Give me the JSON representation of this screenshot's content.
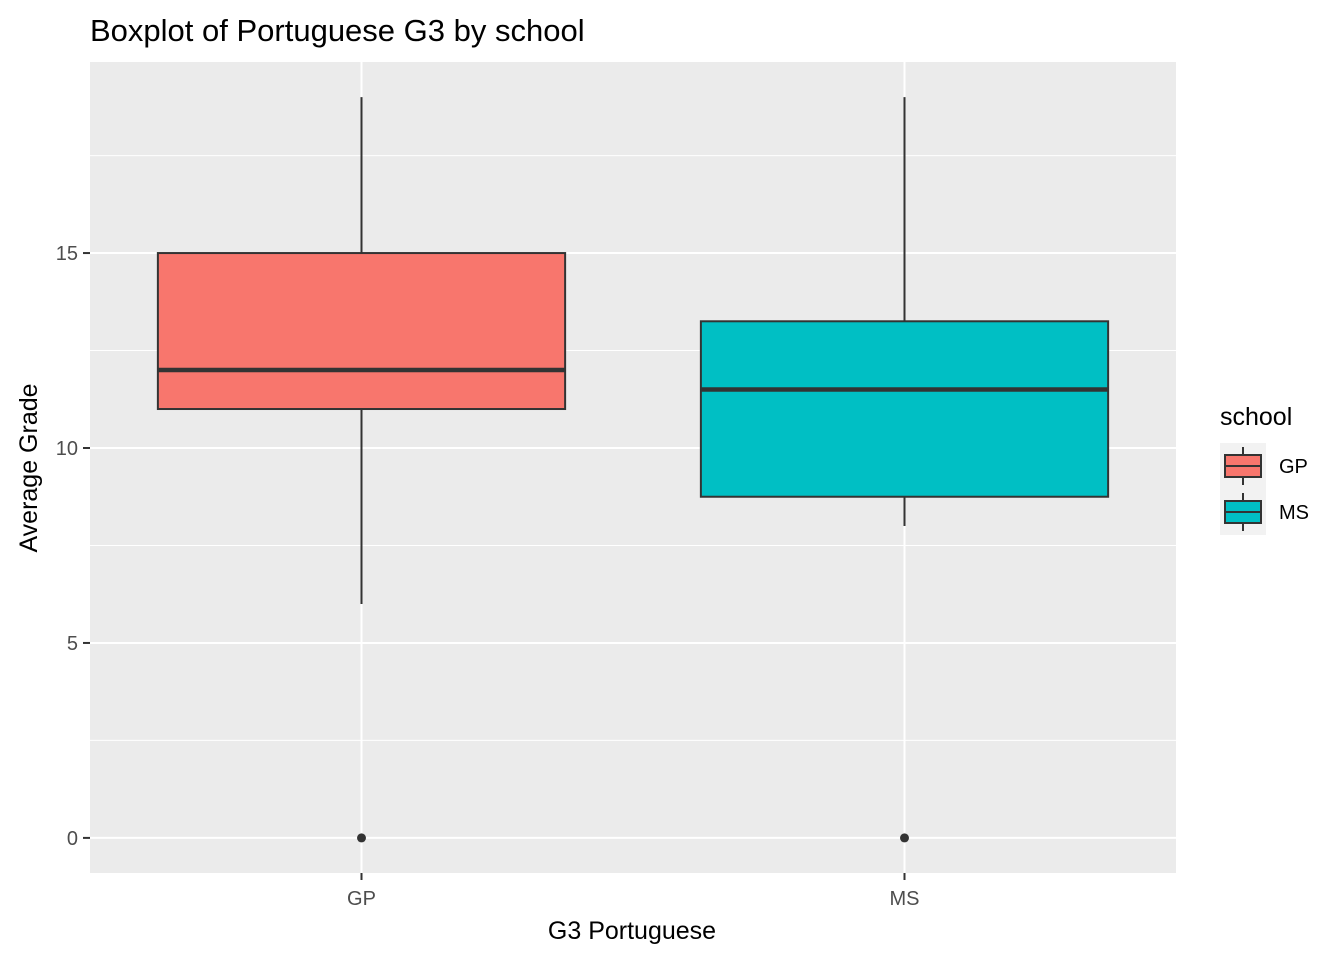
{
  "chart_data": {
    "type": "boxplot",
    "title": "Boxplot of Portuguese G3 by school",
    "xlabel": "G3 Portuguese",
    "ylabel": "Average Grade",
    "ylim": [
      -0.9,
      19.9
    ],
    "yticks": [
      0,
      5,
      10,
      15
    ],
    "ytick_labels": [
      "0",
      "5",
      "10",
      "15"
    ],
    "minor_yticks": [
      2.5,
      7.5,
      12.5,
      17.5
    ],
    "grid": true,
    "panel_color": "#ebebeb",
    "legend": {
      "title": "school",
      "position": "right"
    },
    "categories": [
      "GP",
      "MS"
    ],
    "series": [
      {
        "name": "GP",
        "color": "#f8766d",
        "min": 6,
        "q1": 11,
        "median": 12,
        "q3": 15,
        "max": 19,
        "outliers": [
          0
        ]
      },
      {
        "name": "MS",
        "color": "#00bfc4",
        "min": 8,
        "q1": 8.75,
        "median": 11.5,
        "q3": 13.25,
        "max": 19,
        "outliers": [
          0
        ]
      }
    ]
  }
}
